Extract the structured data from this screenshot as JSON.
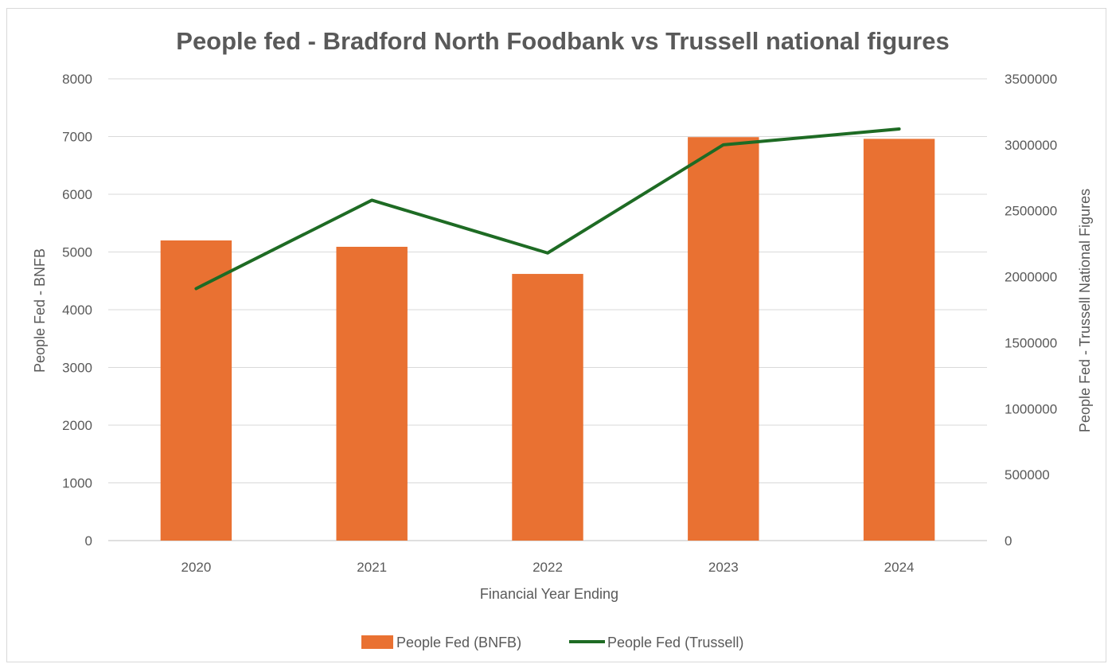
{
  "chart_data": {
    "type": "bar",
    "title": "People fed - Bradford North Foodbank vs Trussell national figures",
    "xlabel": "Financial Year Ending",
    "ylabel": "People Fed - BNFB",
    "y2label": "People Fed - Trussell National Figures",
    "categories": [
      "2020",
      "2021",
      "2022",
      "2023",
      "2024"
    ],
    "ylim": [
      0,
      8000
    ],
    "yticks": [
      "0",
      "1000",
      "2000",
      "3000",
      "4000",
      "5000",
      "6000",
      "7000",
      "8000"
    ],
    "y2lim": [
      0,
      3500000
    ],
    "y2ticks": [
      "0",
      "500000",
      "1000000",
      "1500000",
      "2000000",
      "2500000",
      "3000000",
      "3500000"
    ],
    "grid": true,
    "legend_position": "bottom",
    "series": [
      {
        "name": "People Fed (BNFB)",
        "type": "bar",
        "axis": "left",
        "color": "#E97132",
        "values": [
          5200,
          5090,
          4620,
          6990,
          6960
        ]
      },
      {
        "name": "People Fed (Trussell)",
        "type": "line",
        "axis": "right",
        "color": "#1E6B24",
        "values": [
          1910000,
          2580000,
          2180000,
          3000000,
          3120000
        ]
      }
    ]
  }
}
